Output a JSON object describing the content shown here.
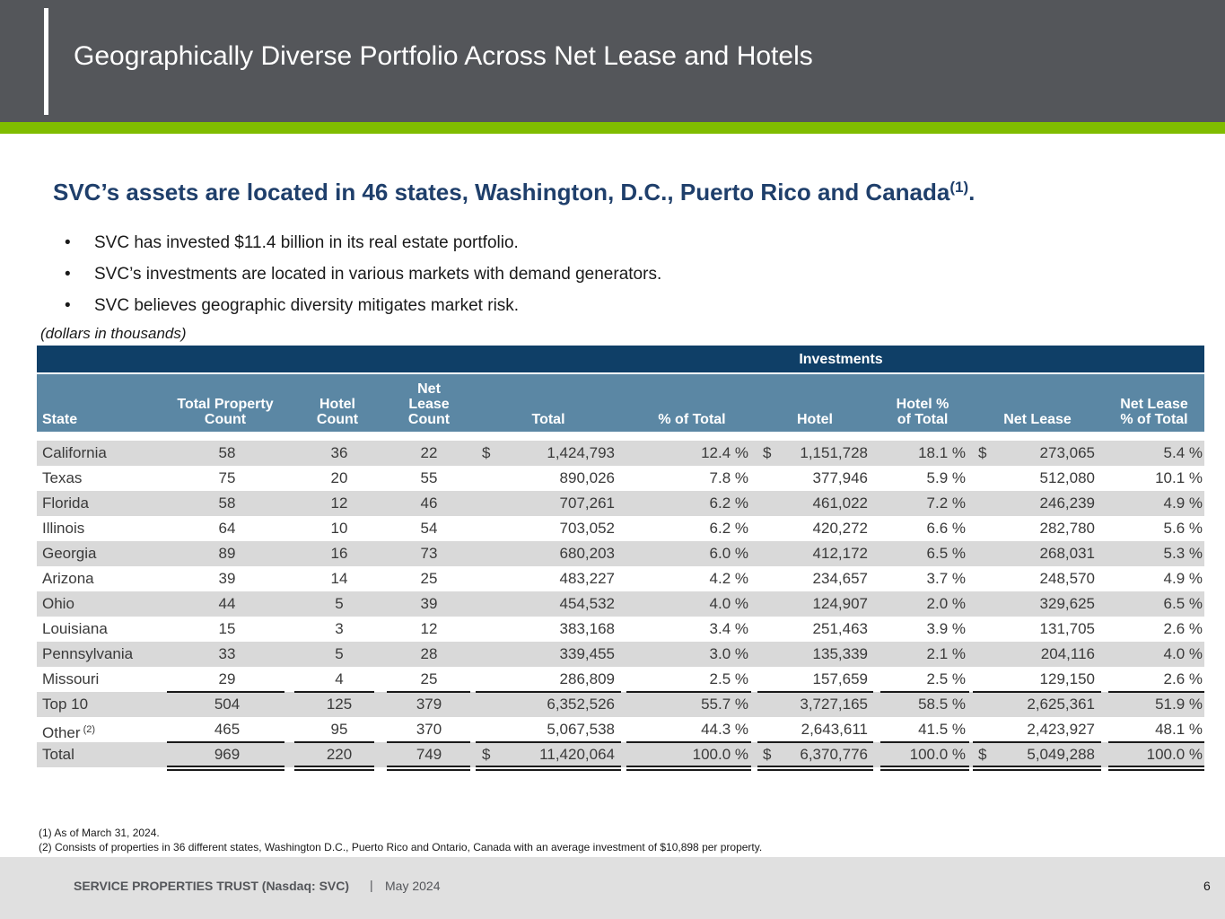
{
  "header": {
    "title": "Geographically Diverse Portfolio Across Net Lease and Hotels"
  },
  "headline": {
    "text": "SVC’s assets are located in 46 states, Washington, D.C., Puerto Rico and Canada",
    "footnote": "(1)",
    "end": "."
  },
  "bullets": [
    "SVC has invested $11.4 billion in its real estate portfolio.",
    "SVC’s investments are located in various markets with demand generators.",
    "SVC believes geographic diversity mitigates market risk."
  ],
  "units_note": "(dollars in thousands)",
  "table": {
    "group_header": "Investments",
    "columns": [
      "State",
      "Total Property Count",
      "Hotel Count",
      "Net Lease Count",
      "Total",
      "% of Total",
      "Hotel",
      "Hotel % of Total",
      "Net Lease",
      "Net Lease % of Total"
    ],
    "dollar_sign": "$",
    "rows": [
      {
        "state": "California",
        "tpc": "58",
        "hc": "36",
        "nlc": "22",
        "total": "1,424,793",
        "pct": "12.4 %",
        "hotel": "1,151,728",
        "hpct": "18.1 %",
        "nl": "273,065",
        "nlpct": "5.4 %"
      },
      {
        "state": "Texas",
        "tpc": "75",
        "hc": "20",
        "nlc": "55",
        "total": "890,026",
        "pct": "7.8 %",
        "hotel": "377,946",
        "hpct": "5.9 %",
        "nl": "512,080",
        "nlpct": "10.1 %"
      },
      {
        "state": "Florida",
        "tpc": "58",
        "hc": "12",
        "nlc": "46",
        "total": "707,261",
        "pct": "6.2 %",
        "hotel": "461,022",
        "hpct": "7.2 %",
        "nl": "246,239",
        "nlpct": "4.9 %"
      },
      {
        "state": "Illinois",
        "tpc": "64",
        "hc": "10",
        "nlc": "54",
        "total": "703,052",
        "pct": "6.2 %",
        "hotel": "420,272",
        "hpct": "6.6 %",
        "nl": "282,780",
        "nlpct": "5.6 %"
      },
      {
        "state": "Georgia",
        "tpc": "89",
        "hc": "16",
        "nlc": "73",
        "total": "680,203",
        "pct": "6.0 %",
        "hotel": "412,172",
        "hpct": "6.5 %",
        "nl": "268,031",
        "nlpct": "5.3 %"
      },
      {
        "state": "Arizona",
        "tpc": "39",
        "hc": "14",
        "nlc": "25",
        "total": "483,227",
        "pct": "4.2 %",
        "hotel": "234,657",
        "hpct": "3.7 %",
        "nl": "248,570",
        "nlpct": "4.9 %"
      },
      {
        "state": "Ohio",
        "tpc": "44",
        "hc": "5",
        "nlc": "39",
        "total": "454,532",
        "pct": "4.0 %",
        "hotel": "124,907",
        "hpct": "2.0 %",
        "nl": "329,625",
        "nlpct": "6.5 %"
      },
      {
        "state": "Louisiana",
        "tpc": "15",
        "hc": "3",
        "nlc": "12",
        "total": "383,168",
        "pct": "3.4 %",
        "hotel": "251,463",
        "hpct": "3.9 %",
        "nl": "131,705",
        "nlpct": "2.6 %"
      },
      {
        "state": "Pennsylvania",
        "tpc": "33",
        "hc": "5",
        "nlc": "28",
        "total": "339,455",
        "pct": "3.0 %",
        "hotel": "135,339",
        "hpct": "2.1 %",
        "nl": "204,116",
        "nlpct": "4.0 %"
      },
      {
        "state": "Missouri",
        "tpc": "29",
        "hc": "4",
        "nlc": "25",
        "total": "286,809",
        "pct": "2.5 %",
        "hotel": "157,659",
        "hpct": "2.5 %",
        "nl": "129,150",
        "nlpct": "2.6 %"
      }
    ],
    "top10": {
      "state": "Top 10",
      "tpc": "504",
      "hc": "125",
      "nlc": "379",
      "total": "6,352,526",
      "pct": "55.7 %",
      "hotel": "3,727,165",
      "hpct": "58.5 %",
      "nl": "2,625,361",
      "nlpct": "51.9 %"
    },
    "other": {
      "state": "Other",
      "footnote": "(2)",
      "tpc": "465",
      "hc": "95",
      "nlc": "370",
      "total": "5,067,538",
      "pct": "44.3 %",
      "hotel": "2,643,611",
      "hpct": "41.5 %",
      "nl": "2,423,927",
      "nlpct": "48.1 %"
    },
    "total": {
      "state": "Total",
      "tpc": "969",
      "hc": "220",
      "nlc": "749",
      "total": "11,420,064",
      "pct": "100.0 %",
      "hotel": "6,370,776",
      "hpct": "100.0 %",
      "nl": "5,049,288",
      "nlpct": "100.0 %"
    }
  },
  "footnotes": [
    "(1) As of March 31, 2024.",
    "(2) Consists of properties in 36 different states, Washington D.C., Puerto Rico and Ontario, Canada with an average investment of $10,898 per property."
  ],
  "footer": {
    "company": "SERVICE PROPERTIES TRUST (Nasdaq: SVC)",
    "separator": "|",
    "date": "May 2024",
    "page": "6"
  },
  "colors": {
    "header_bg": "#54565a",
    "accent_green": "#80bc00",
    "headline_blue": "#1f3f6b",
    "table_dark": "#0f3f67",
    "table_head": "#5b87a4",
    "row_shade": "#d9d9d9"
  }
}
